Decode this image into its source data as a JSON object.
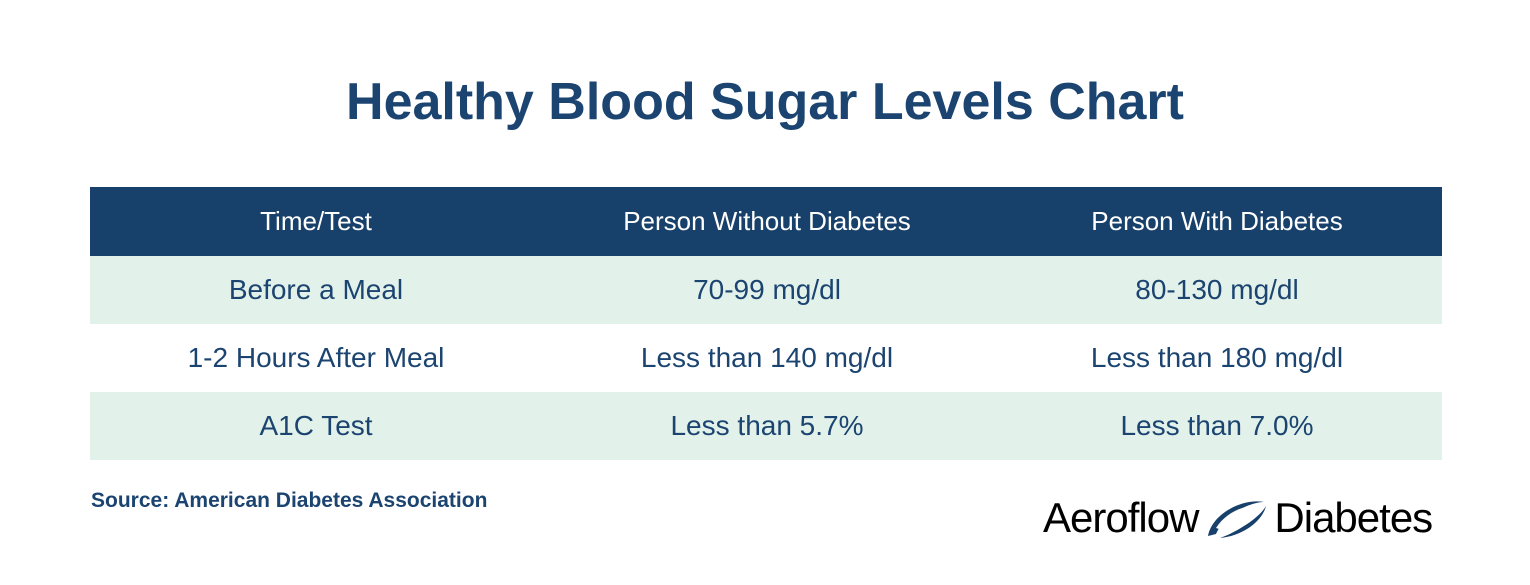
{
  "title": "Healthy Blood Sugar Levels Chart",
  "table": {
    "headers": [
      "Time/Test",
      "Person Without Diabetes",
      "Person With Diabetes"
    ],
    "rows": [
      [
        "Before a Meal",
        "70-99 mg/dl",
        "80-130 mg/dl"
      ],
      [
        "1-2 Hours After Meal",
        "Less than 140 mg/dl",
        "Less than 180 mg/dl"
      ],
      [
        "A1C Test",
        "Less than 5.7%",
        "Less than 7.0%"
      ]
    ]
  },
  "source": "Source: American Diabetes Association",
  "logo": {
    "word_left": "Aeroflow",
    "word_right": "Diabetes",
    "mark_icon": "swoosh-icon"
  },
  "colors": {
    "navy": "#17406a",
    "title": "#1b4470",
    "row_shade": "#e2f1ea"
  }
}
